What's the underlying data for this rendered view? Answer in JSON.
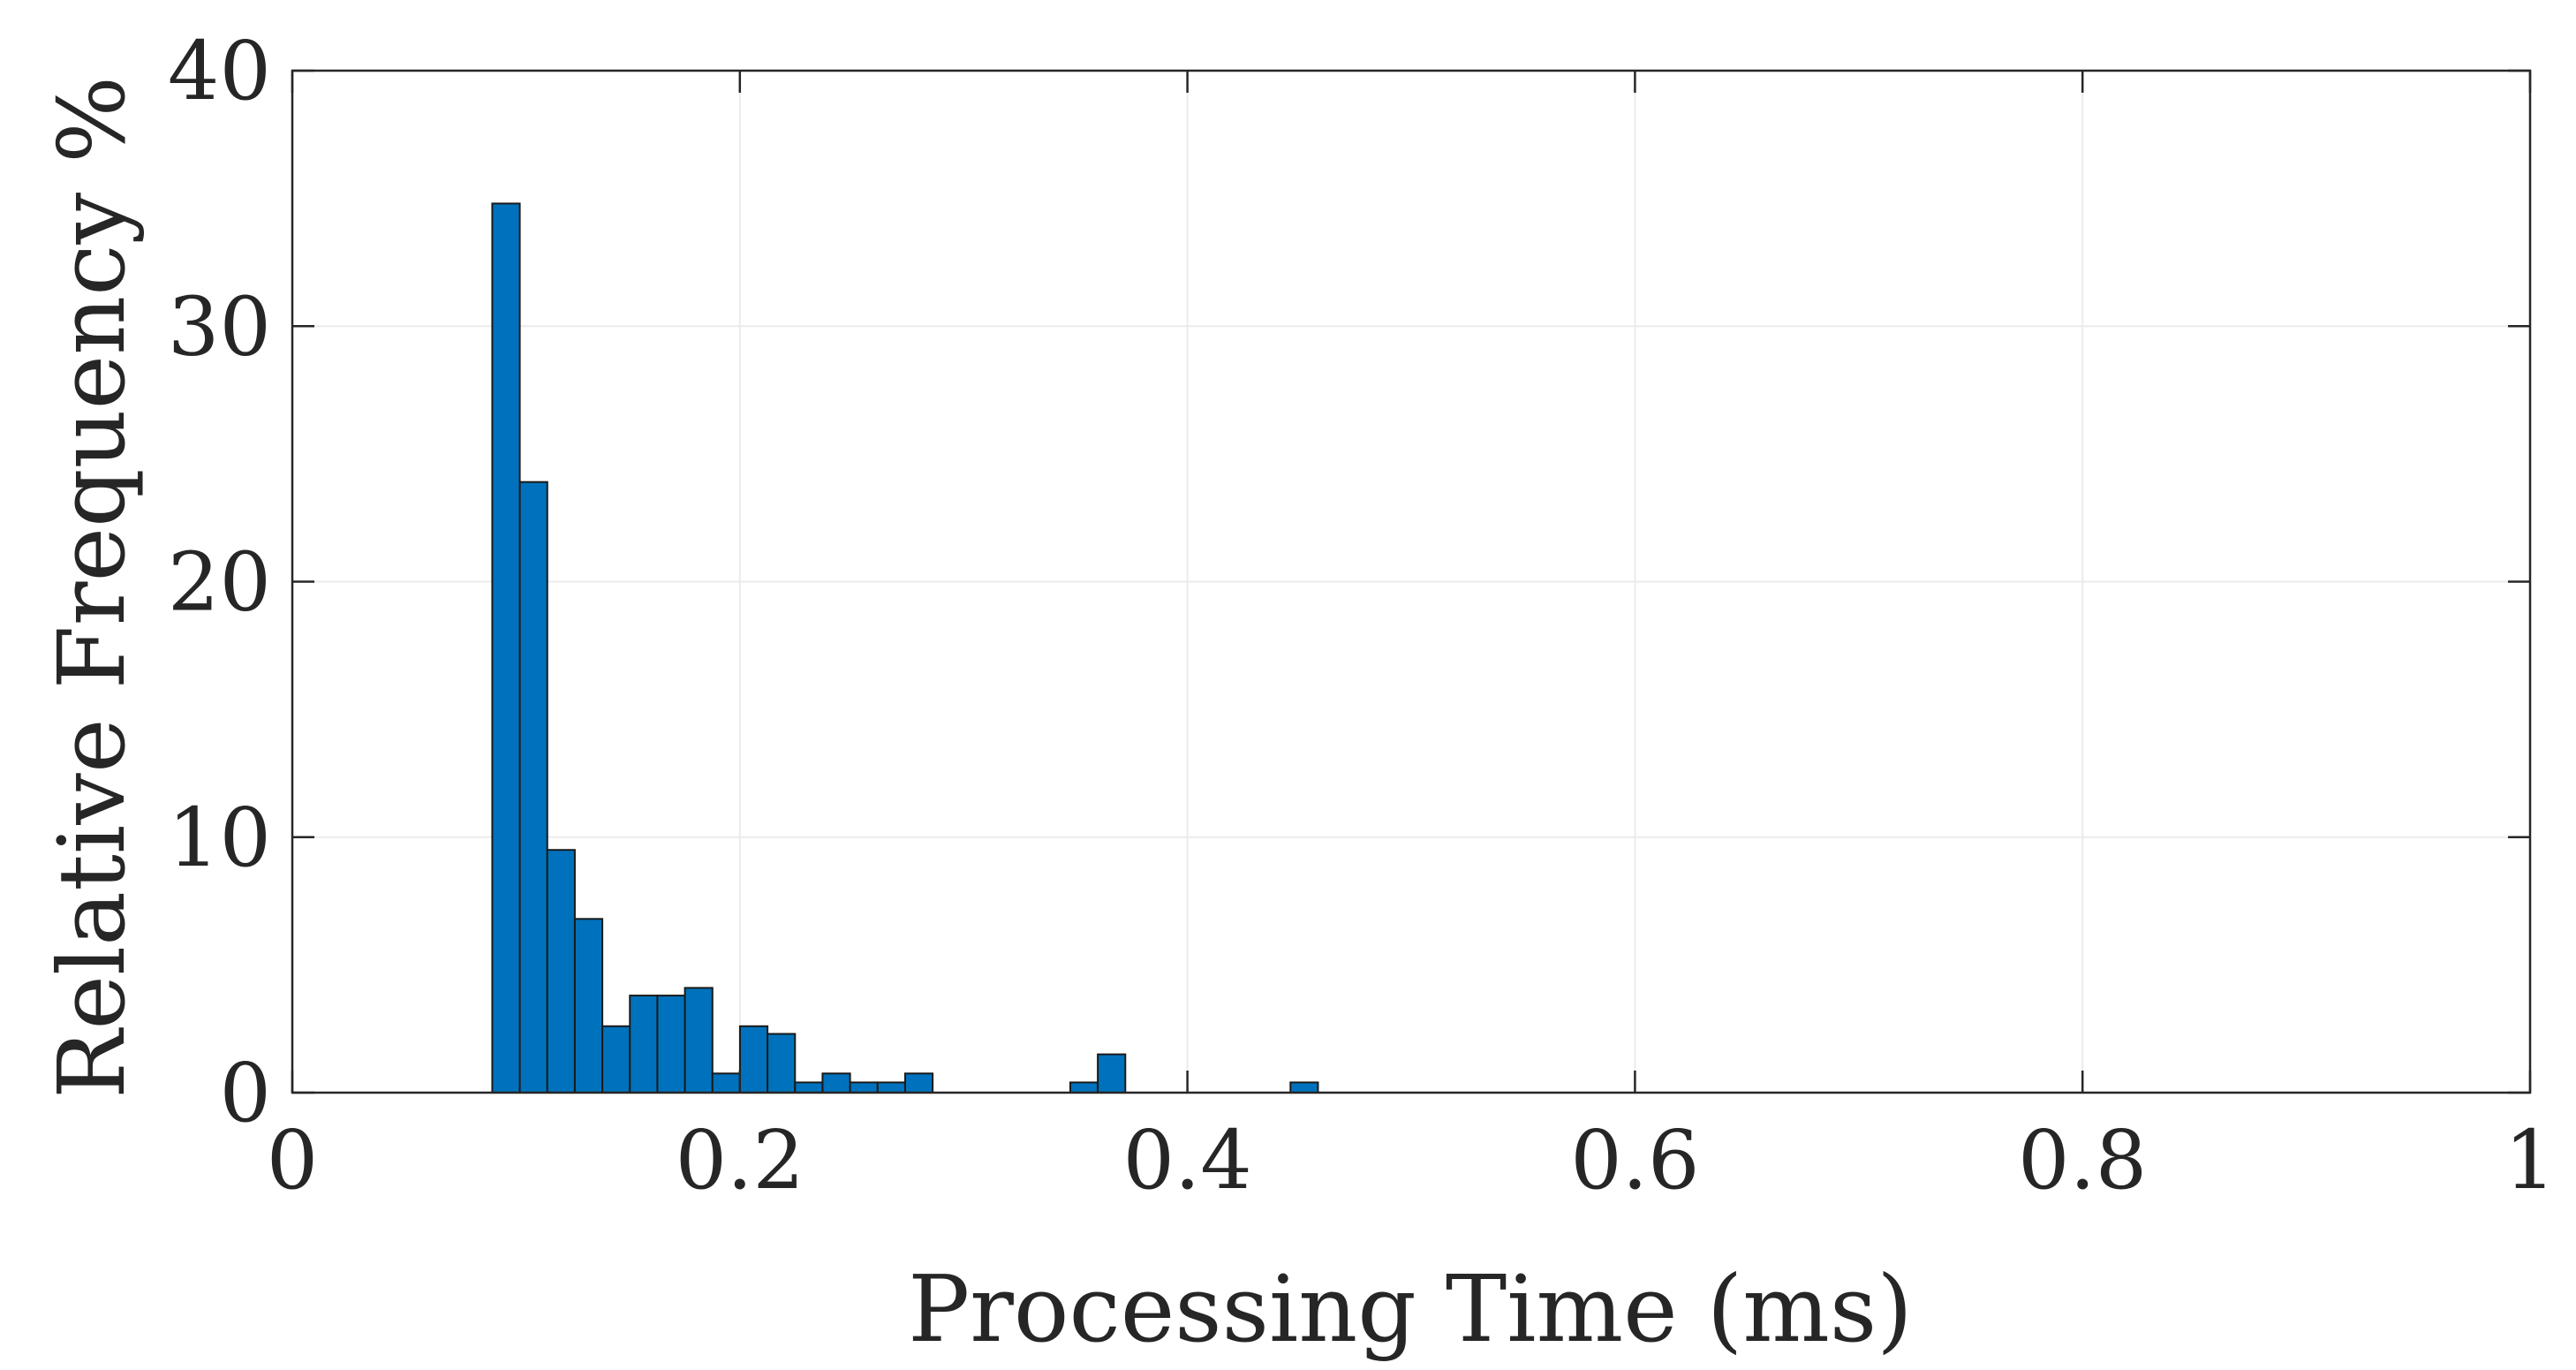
{
  "chart_data": {
    "type": "bar",
    "title": "",
    "xlabel": "Processing Time (ms)",
    "ylabel": "Relative Frequency %",
    "xlim": [
      0,
      1
    ],
    "ylim": [
      0,
      40
    ],
    "x_ticks": [
      {
        "value": 0,
        "label": "0"
      },
      {
        "value": 0.2,
        "label": "0.2"
      },
      {
        "value": 0.4,
        "label": "0.4"
      },
      {
        "value": 0.6,
        "label": "0.6"
      },
      {
        "value": 0.8,
        "label": "0.8"
      },
      {
        "value": 1,
        "label": "1"
      }
    ],
    "y_ticks": [
      {
        "value": 0,
        "label": "0"
      },
      {
        "value": 10,
        "label": "10"
      },
      {
        "value": 20,
        "label": "20"
      },
      {
        "value": 30,
        "label": "30"
      },
      {
        "value": 40,
        "label": "40"
      }
    ],
    "grid": true,
    "bar_width": 0.0123,
    "color": "#0072BD",
    "bar_edge_color": "#1a1a1a",
    "axis_color": "#262626",
    "grid_color": "#ebebeb",
    "series": [
      {
        "x": [
          0.0955,
          0.1078,
          0.1201,
          0.1324,
          0.1447,
          0.157,
          0.1693,
          0.1816,
          0.1939,
          0.2062,
          0.2185,
          0.2308,
          0.2431,
          0.2554,
          0.2677,
          0.28,
          0.3538,
          0.3661,
          0.4522
        ],
        "values": [
          34.8,
          23.9,
          9.5,
          6.8,
          2.6,
          3.8,
          3.8,
          4.1,
          0.75,
          2.6,
          2.3,
          0.4,
          0.75,
          0.4,
          0.4,
          0.75,
          0.4,
          1.5,
          0.4
        ]
      }
    ]
  }
}
